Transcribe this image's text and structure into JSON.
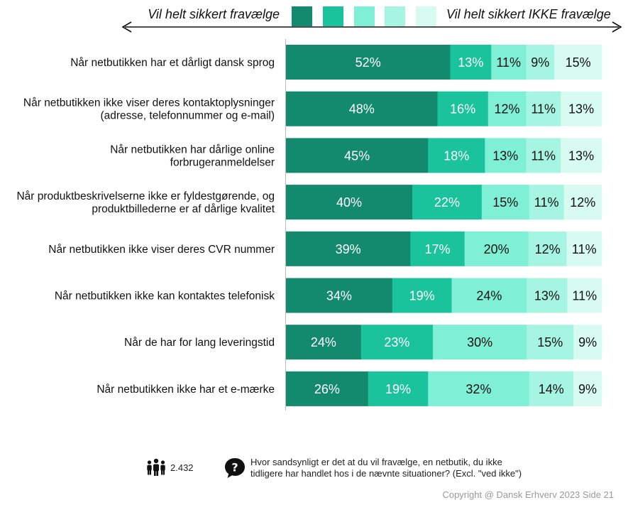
{
  "chart_data": {
    "type": "bar",
    "orientation": "horizontal",
    "stacked": true,
    "percent_labels": true,
    "legend_placement": "top",
    "legend_left_label": "Vil helt sikkert fravælge",
    "legend_right_label": "Vil helt sikkert IKKE fravælge",
    "colors": [
      "#138a6e",
      "#1bc39d",
      "#7fefd5",
      "#a6f5e3",
      "#d8fbf1"
    ],
    "categories": [
      "Når netbutikken har et dårligt dansk sprog",
      "Når netbutikken ikke viser deres kontaktoplysninger|(adresse, telefonnummer og e-mail)",
      "Når netbutikken har dårlige online|forbrugeranmeldelser",
      "Når produktbeskrivelserne ikke er fyldestgørende, og|produktbillederne er af dårlige kvalitet",
      "Når netbutikken ikke viser deres CVR nummer",
      "Når netbutikken ikke kan kontaktes telefonisk",
      "Når de har for lang leveringstid",
      "Når netbutikken ikke har et e-mærke"
    ],
    "values": [
      [
        52,
        13,
        11,
        9,
        15
      ],
      [
        48,
        16,
        12,
        11,
        13
      ],
      [
        45,
        18,
        13,
        11,
        13
      ],
      [
        40,
        22,
        15,
        11,
        12
      ],
      [
        39,
        17,
        20,
        12,
        11
      ],
      [
        34,
        19,
        24,
        13,
        11
      ],
      [
        24,
        23,
        30,
        15,
        9
      ],
      [
        26,
        19,
        32,
        14,
        9
      ]
    ]
  },
  "footer": {
    "respondents_icon": "people-icon",
    "respondents": "2.432",
    "question_icon": "question-bubble-icon",
    "question_line1": "Hvor sandsynligt er det at du vil fravælge, en netbutik, du ikke",
    "question_line2": "tidligere har handlet hos i de nævnte situationer? (Excl. \"ved ikke\")",
    "copyright": "Copyright @ Dansk Erhverv 2023  Side  21"
  }
}
